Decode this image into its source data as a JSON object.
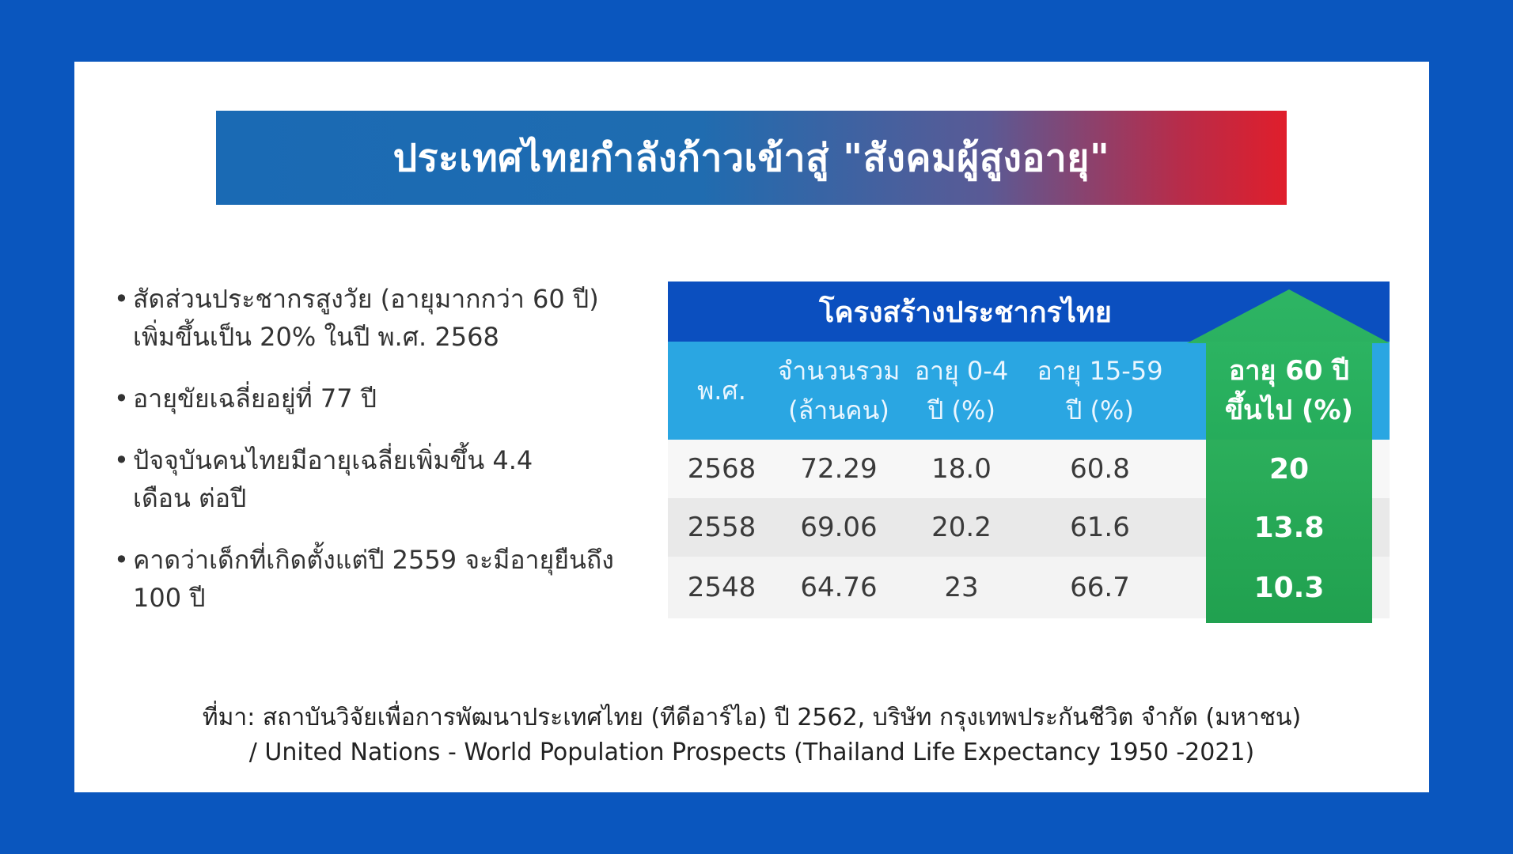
{
  "title": "ประเทศไทยกำลังก้าวเข้าสู่ \"สังคมผู้สูงอายุ\"",
  "bullets": [
    "สัดส่วนประชากรสูงวัย (อายุมากกว่า 60 ปี) เพิ่มขึ้นเป็น 20% ในปี พ.ศ. 2568",
    "อายุขัยเฉลี่ยอยู่ที่ 77 ปี",
    "ปัจจุบันคนไทยมีอายุเฉลี่ยเพิ่มขึ้น 4.4 เดือน ต่อปี",
    "คาดว่าเด็กที่เกิดตั้งแต่ปี 2559 จะมีอายุยืนถึง 100 ปี"
  ],
  "table": {
    "title": "โครงสร้างประชากรไทย",
    "headers": [
      "พ.ศ.",
      "จำนวนรวม\n(ล้านคน)",
      "อายุ 0-4\nปี (%)",
      "อายุ 15-59\nปี (%)",
      "อายุ 60 ปี\nขึ้นไป (%)"
    ],
    "rows": [
      [
        "2568",
        "72.29",
        "18.0",
        "60.8",
        "20"
      ],
      [
        "2558",
        "69.06",
        "20.2",
        "61.6",
        "13.8"
      ],
      [
        "2548",
        "64.76",
        "23",
        "66.7",
        "10.3"
      ]
    ]
  },
  "source": {
    "line1": "ที่มา: สถาบันวิจัยเพื่อการพัฒนาประเทศไทย (ทีดีอาร์ไอ) ปี 2562, บริษัท กรุงเทพประกันชีวิต จำกัด (มหาชน)",
    "line2": "/ United Nations - World Population Prospects (Thailand Life Expectancy 1950 -2021)"
  },
  "colors": {
    "frame": "#0a56be",
    "table_header": "#0b4fbf",
    "column_header": "#2aa6e2",
    "highlight": "#1fa64f",
    "banner_start": "#1a6ab4",
    "banner_end": "#e01e2b"
  },
  "icons": {
    "highlight_arrow": "up-arrow"
  }
}
